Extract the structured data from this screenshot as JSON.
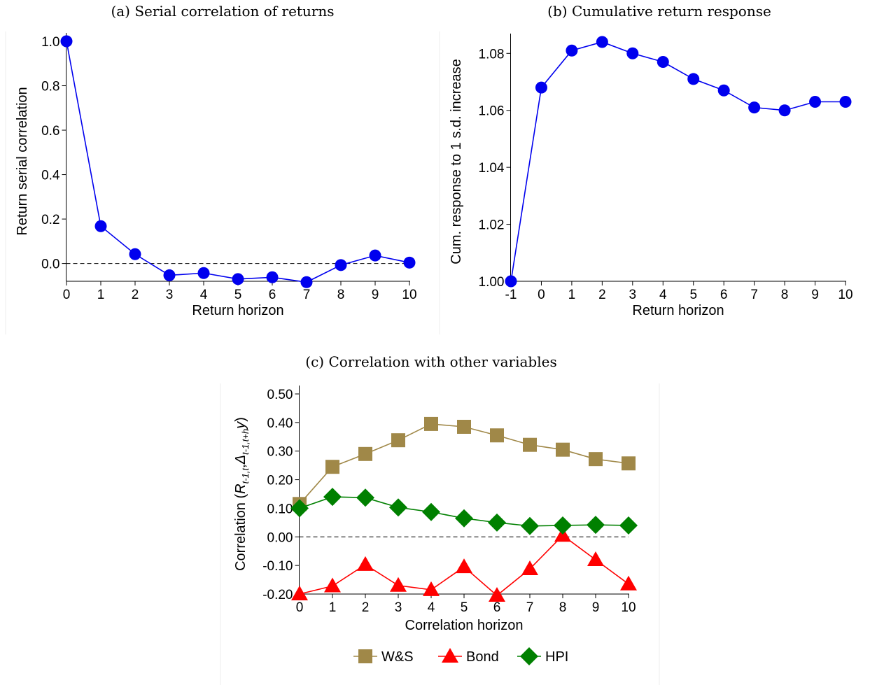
{
  "panels": {
    "a": {
      "title": "(a) Serial correlation of returns"
    },
    "b": {
      "title": "(b) Cumulative return response"
    },
    "c": {
      "title": "(c) Correlation with other variables"
    }
  },
  "chart_data": [
    {
      "id": "a",
      "type": "line",
      "title": "(a) Serial correlation of returns",
      "xlabel": "Return horizon",
      "ylabel": "Return serial correlation",
      "xlim": [
        0,
        10
      ],
      "ylim": [
        -0.08,
        1.0
      ],
      "xticks": [
        "0",
        "1",
        "2",
        "3",
        "4",
        "5",
        "6",
        "7",
        "8",
        "9",
        "10"
      ],
      "yticks": [
        "0.0",
        "0.2",
        "0.4",
        "0.6",
        "0.8",
        "1.0"
      ],
      "reference_line": 0,
      "grid": false,
      "series": [
        {
          "color": "#0000ee",
          "marker": "circle",
          "x": [
            0,
            1,
            2,
            3,
            4,
            5,
            6,
            7,
            8,
            9,
            10
          ],
          "y": [
            1.0,
            0.168,
            0.042,
            -0.053,
            -0.043,
            -0.07,
            -0.062,
            -0.084,
            -0.007,
            0.036,
            0.004
          ]
        }
      ]
    },
    {
      "id": "b",
      "type": "line",
      "title": "(b) Cumulative return response",
      "xlabel": "Return horizon",
      "ylabel": "Cum. response to 1 s.d. increase",
      "xlim": [
        -1,
        10
      ],
      "ylim": [
        1.0,
        1.084
      ],
      "xticks": [
        "-1",
        "0",
        "1",
        "2",
        "3",
        "4",
        "5",
        "6",
        "7",
        "8",
        "9",
        "10"
      ],
      "yticks": [
        "1.00",
        "1.02",
        "1.04",
        "1.06",
        "1.08"
      ],
      "grid": false,
      "series": [
        {
          "color": "#0000ee",
          "marker": "circle",
          "x": [
            -1,
            0,
            1,
            2,
            3,
            4,
            5,
            6,
            7,
            8,
            9,
            10
          ],
          "y": [
            1.0,
            1.068,
            1.081,
            1.084,
            1.08,
            1.077,
            1.071,
            1.067,
            1.061,
            1.06,
            1.063,
            1.063
          ]
        }
      ]
    },
    {
      "id": "c",
      "type": "line",
      "title": "(c) Correlation with other variables",
      "xlabel": "Correlation horizon",
      "ylabel": "Correlation (R_{t-1,t}, Δ_{t-1,t+h} y)",
      "ylabel_parts": {
        "prefix": "Correlation (",
        "r": "R",
        "r_sub": "t-1,t",
        "sep": ",",
        "delta": "Δ",
        "delta_sub": "t-1,t+h",
        "y": "y",
        "suffix": ")"
      },
      "xlim": [
        0,
        10
      ],
      "ylim": [
        -0.2,
        0.5
      ],
      "xticks": [
        "0",
        "1",
        "2",
        "3",
        "4",
        "5",
        "6",
        "7",
        "8",
        "9",
        "10"
      ],
      "yticks": [
        "-0.20",
        "-0.10",
        "0.00",
        "0.10",
        "0.20",
        "0.30",
        "0.40",
        "0.50"
      ],
      "reference_line": 0,
      "grid": false,
      "legend": "bottom",
      "series": [
        {
          "name": "W&S",
          "color": "#a08848",
          "marker": "square",
          "x": [
            0,
            1,
            2,
            3,
            4,
            5,
            6,
            7,
            8,
            9,
            10
          ],
          "y": [
            0.115,
            0.245,
            0.29,
            0.338,
            0.395,
            0.385,
            0.355,
            0.322,
            0.305,
            0.272,
            0.257
          ]
        },
        {
          "name": "Bond",
          "color": "#ff0000",
          "marker": "triangle",
          "x": [
            0,
            1,
            2,
            3,
            4,
            5,
            6,
            7,
            8,
            9,
            10
          ],
          "y": [
            -0.2,
            -0.172,
            -0.097,
            -0.17,
            -0.185,
            -0.105,
            -0.205,
            -0.112,
            0.005,
            -0.08,
            -0.165
          ]
        },
        {
          "name": "HPI",
          "color": "#008000",
          "marker": "diamond",
          "x": [
            0,
            1,
            2,
            3,
            4,
            5,
            6,
            7,
            8,
            9,
            10
          ],
          "y": [
            0.1,
            0.14,
            0.137,
            0.103,
            0.087,
            0.065,
            0.05,
            0.038,
            0.04,
            0.042,
            0.04
          ]
        }
      ]
    }
  ]
}
